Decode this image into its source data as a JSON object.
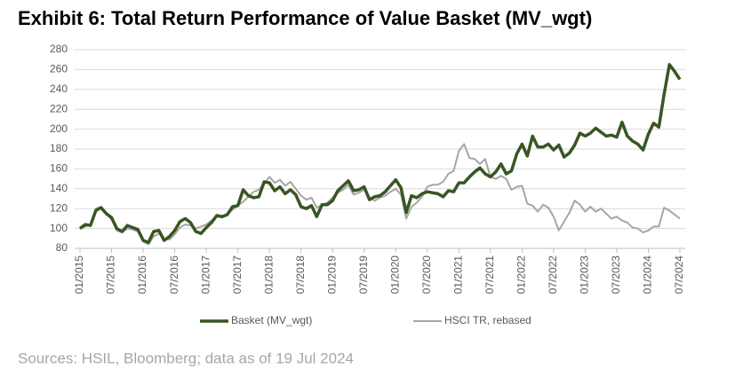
{
  "chart_data": {
    "type": "line",
    "title": "Exhibit 6: Total Return Performance of Value Basket (MV_wgt)",
    "source": "Sources: HSIL, Bloomberg; data as of 19 Jul 2024",
    "categories": [
      "01/2015",
      null,
      null,
      null,
      null,
      null,
      "07/2015",
      null,
      null,
      null,
      null,
      null,
      "01/2016",
      null,
      null,
      null,
      null,
      null,
      "07/2016",
      null,
      null,
      null,
      null,
      null,
      "01/2017",
      null,
      null,
      null,
      null,
      null,
      "07/2017",
      null,
      null,
      null,
      null,
      null,
      "01/2018",
      null,
      null,
      null,
      null,
      null,
      "07/2018",
      null,
      null,
      null,
      null,
      null,
      "01/2019",
      null,
      null,
      null,
      null,
      null,
      "07/2019",
      null,
      null,
      null,
      null,
      null,
      "01/2020",
      null,
      null,
      null,
      null,
      null,
      "07/2020",
      null,
      null,
      null,
      null,
      null,
      "01/2021",
      null,
      null,
      null,
      null,
      null,
      "07/2021",
      null,
      null,
      null,
      null,
      null,
      "01/2022",
      null,
      null,
      null,
      null,
      null,
      "07/2022",
      null,
      null,
      null,
      null,
      null,
      "01/2023",
      null,
      null,
      null,
      null,
      null,
      "07/2023",
      null,
      null,
      null,
      null,
      null,
      "01/2024",
      null,
      null,
      null,
      null,
      null,
      "07/2024"
    ],
    "series": [
      {
        "name": "Basket (MV_wgt)",
        "color": "#375623",
        "width": 3.5,
        "values": [
          100,
          104,
          103,
          118,
          121,
          115,
          111,
          100,
          97,
          103,
          101,
          99,
          88,
          86,
          97,
          98,
          88,
          92,
          98,
          107,
          110,
          106,
          97,
          95,
          101,
          106,
          113,
          112,
          114,
          122,
          123,
          139,
          133,
          131,
          132,
          147,
          146,
          138,
          142,
          135,
          139,
          134,
          122,
          120,
          123,
          112,
          124,
          124,
          128,
          138,
          143,
          148,
          138,
          139,
          142,
          129,
          132,
          133,
          137,
          143,
          149,
          141,
          116,
          133,
          131,
          135,
          137,
          136,
          135,
          132,
          138,
          137,
          146,
          146,
          152,
          157,
          161,
          155,
          152,
          157,
          165,
          155,
          158,
          175,
          185,
          173,
          193,
          182,
          182,
          185,
          179,
          184,
          172,
          176,
          184,
          196,
          193,
          196,
          201,
          197,
          193,
          194,
          192,
          207,
          193,
          188,
          185,
          179,
          195,
          206,
          202,
          235,
          265,
          258,
          250
        ]
      },
      {
        "name": "HSCI TR, rebased",
        "color": "#a6a6a6",
        "width": 2,
        "values": [
          100,
          102,
          104,
          120,
          122,
          116,
          109,
          98,
          96,
          100,
          99,
          97,
          87,
          84,
          92,
          95,
          89,
          89,
          94,
          101,
          104,
          103,
          100,
          102,
          104,
          108,
          112,
          111,
          115,
          119,
          123,
          127,
          132,
          137,
          139,
          145,
          152,
          146,
          149,
          143,
          147,
          140,
          133,
          129,
          131,
          121,
          124,
          126,
          131,
          136,
          139,
          144,
          134,
          136,
          139,
          131,
          128,
          131,
          133,
          137,
          140,
          134,
          110,
          122,
          126,
          132,
          142,
          144,
          144,
          147,
          155,
          158,
          178,
          185,
          171,
          170,
          165,
          170,
          152,
          150,
          153,
          150,
          139,
          142,
          143,
          125,
          123,
          117,
          124,
          121,
          112,
          98,
          107,
          116,
          128,
          124,
          117,
          122,
          117,
          120,
          115,
          110,
          112,
          108,
          106,
          101,
          100,
          96,
          98,
          102,
          102,
          121,
          118,
          114,
          110
        ]
      }
    ],
    "ylim": [
      80,
      280
    ],
    "yticks": [
      80,
      100,
      120,
      140,
      160,
      180,
      200,
      220,
      240,
      260,
      280
    ],
    "grid": true,
    "legend": "bottom"
  }
}
